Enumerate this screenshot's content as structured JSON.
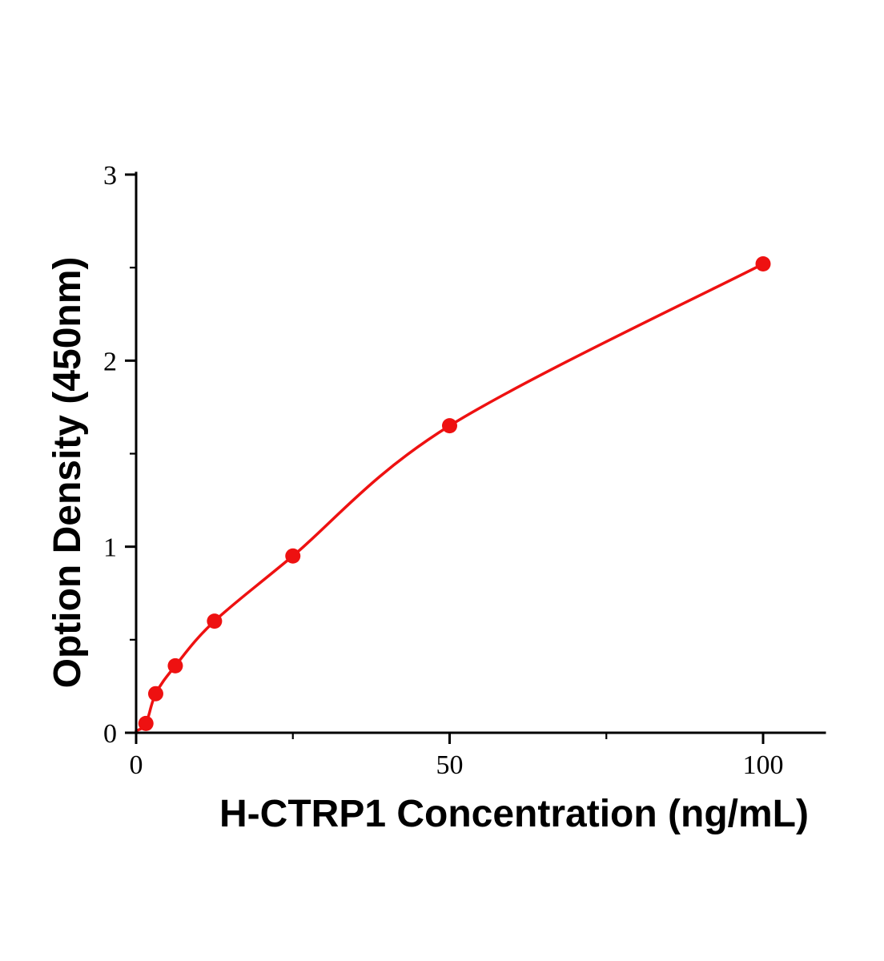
{
  "chart_data": {
    "type": "scatter",
    "title": "",
    "xlabel": "H-CTRP1 Concentration (ng/mL)",
    "ylabel": "Option Density (450nm)",
    "x": [
      1.5625,
      3.125,
      6.25,
      12.5,
      25,
      50,
      100
    ],
    "y": [
      0.05,
      0.21,
      0.36,
      0.6,
      0.95,
      1.65,
      2.52
    ],
    "fit_curve": {
      "x": [
        0,
        1.5625,
        3.125,
        6.25,
        12.5,
        25,
        50,
        100
      ],
      "y": [
        0.01,
        0.05,
        0.21,
        0.36,
        0.6,
        0.95,
        1.65,
        2.52
      ]
    },
    "xlim": [
      0,
      110
    ],
    "ylim": [
      0,
      3
    ],
    "x_major_ticks": [
      0,
      50,
      100
    ],
    "x_minor_ticks": [
      25,
      75
    ],
    "x_tick_labels": [
      "0",
      "50",
      "100"
    ],
    "y_major_ticks": [
      0,
      1,
      2,
      3
    ],
    "y_minor_ticks": [
      0.5,
      1.5,
      2.5
    ],
    "y_tick_labels": [
      "0",
      "1",
      "2",
      "3"
    ],
    "grid": false,
    "legend": null,
    "marker_color": "#ee1111",
    "line_color": "#ee1111",
    "axis_color": "#000000"
  }
}
